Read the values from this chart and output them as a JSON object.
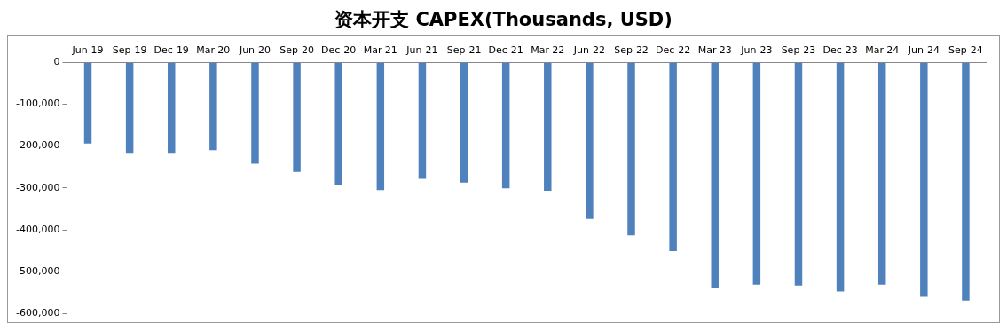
{
  "chart_data": {
    "type": "bar",
    "title": "资本开支 CAPEX(Thousands, USD)",
    "categories": [
      "Jun-19",
      "Sep-19",
      "Dec-19",
      "Mar-20",
      "Jun-20",
      "Sep-20",
      "Dec-20",
      "Mar-21",
      "Jun-21",
      "Sep-21",
      "Dec-21",
      "Mar-22",
      "Jun-22",
      "Sep-22",
      "Dec-22",
      "Mar-23",
      "Jun-23",
      "Sep-23",
      "Dec-23",
      "Mar-24",
      "Jun-24",
      "Sep-24"
    ],
    "values": [
      -194000,
      -216000,
      -216000,
      -210000,
      -242000,
      -262000,
      -294000,
      -305000,
      -278000,
      -287000,
      -301000,
      -307000,
      -374000,
      -413000,
      -451000,
      -539000,
      -531000,
      -533000,
      -547000,
      -531000,
      -560000,
      -569000
    ],
    "color": "#4f81bd",
    "ylim": [
      -600000,
      0
    ],
    "yticks": [
      {
        "value": 0,
        "label": "0"
      },
      {
        "value": -100000,
        "label": "-100,000"
      },
      {
        "value": -200000,
        "label": "-200,000"
      },
      {
        "value": -300000,
        "label": "-300,000"
      },
      {
        "value": -400000,
        "label": "-400,000"
      },
      {
        "value": -500000,
        "label": "-500,000"
      },
      {
        "value": -600000,
        "label": "-600,000"
      }
    ],
    "grid": false
  }
}
